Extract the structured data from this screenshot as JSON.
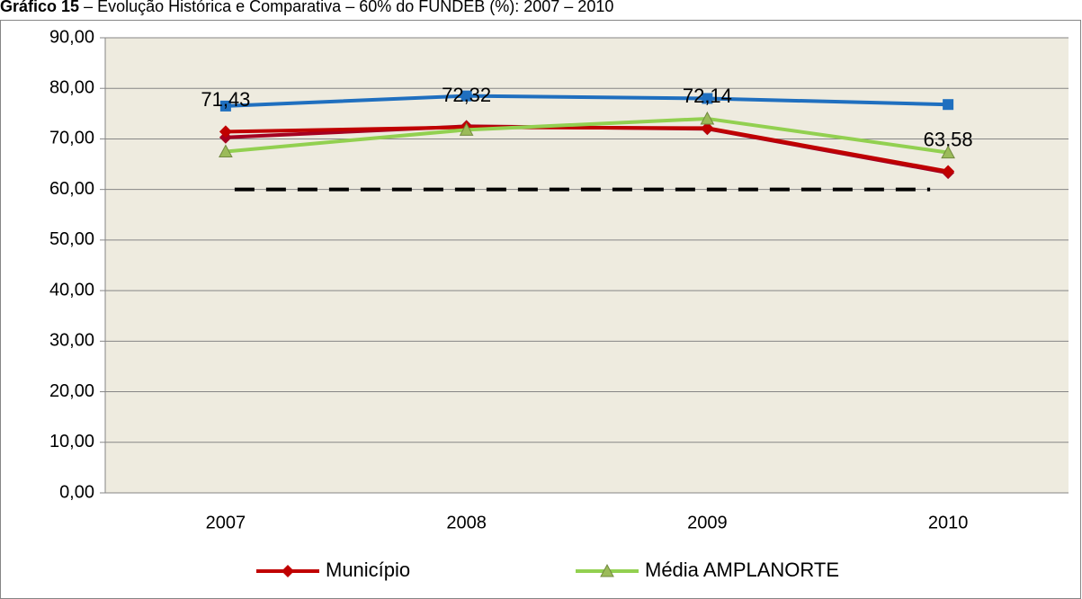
{
  "chart_data": {
    "type": "line",
    "title_label": "Gráfico 15",
    "title": "– Evolução Histórica e Comparativa – 60% do FUNDEB (%): 2007 – 2010",
    "categories": [
      "2007",
      "2008",
      "2009",
      "2010"
    ],
    "series": [
      {
        "color": "#1f6fbf",
        "marker": "square",
        "values": [
          76.5,
          78.5,
          78.0,
          76.8
        ]
      },
      {
        "color": "#a50021",
        "marker": "diamond",
        "values": [
          70.3,
          72.5,
          72.0,
          63.3
        ]
      },
      {
        "name": "Município",
        "color": "#c00000",
        "marker": "diamond",
        "values": [
          71.43,
          72.32,
          72.14,
          63.58
        ],
        "value_labels": [
          "71,43",
          "72,32",
          "72,14",
          "63,58"
        ]
      },
      {
        "name": "Média AMPLANORTE",
        "color": "#92d050",
        "marker": "triangle",
        "values": [
          67.5,
          71.8,
          74.0,
          67.3
        ]
      },
      {
        "color": "#000000",
        "dash": true,
        "values": [
          60,
          60,
          60,
          60
        ]
      }
    ],
    "ylim": [
      0,
      90
    ],
    "yticks": [
      {
        "value": 0,
        "label": "0,00"
      },
      {
        "value": 10,
        "label": "10,00"
      },
      {
        "value": 20,
        "label": "20,00"
      },
      {
        "value": 30,
        "label": "30,00"
      },
      {
        "value": 40,
        "label": "40,00"
      },
      {
        "value": 50,
        "label": "50,00"
      },
      {
        "value": 60,
        "label": "60,00"
      },
      {
        "value": 70,
        "label": "70,00"
      },
      {
        "value": 80,
        "label": "80,00"
      },
      {
        "value": 90,
        "label": "90,00"
      }
    ],
    "grid": true
  }
}
